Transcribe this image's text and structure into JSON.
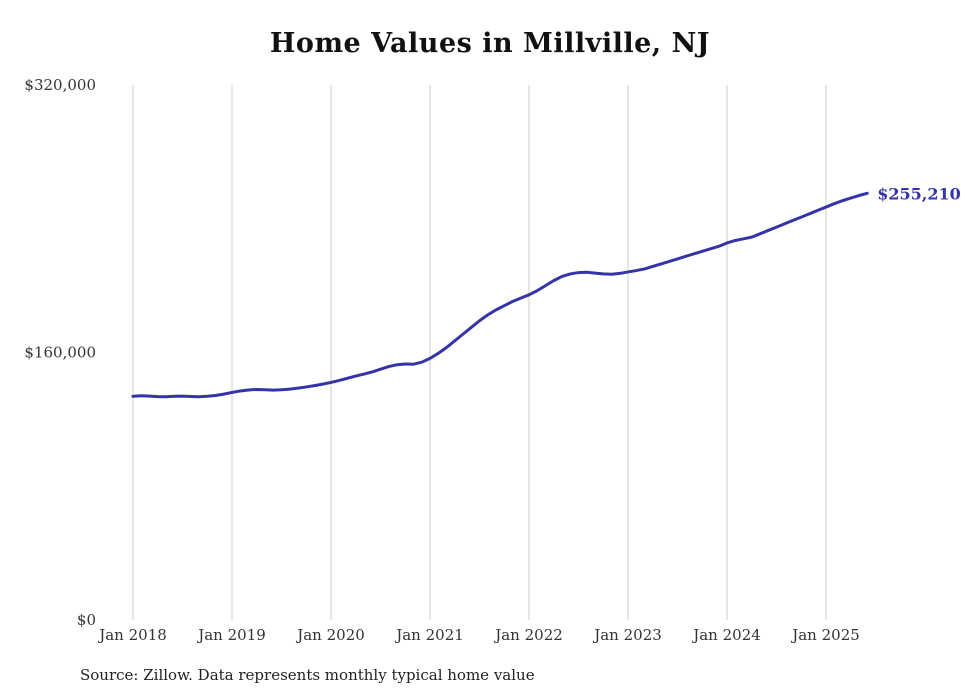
{
  "title": "Home Values in Millville, NJ",
  "source_note": "Source: Zillow. Data represents monthly typical home value",
  "end_label": "$255,210",
  "line_color": "#3533a8",
  "gridline_color": "#cccccc",
  "axis_text_color": "#333333",
  "chart_data": {
    "type": "line",
    "title": "Home Values in Millville, NJ",
    "xlabel": "",
    "ylabel": "",
    "ylim": [
      0,
      320000
    ],
    "grid": "vertical-only",
    "legend_position": "none",
    "x_tick_labels": [
      "Jan 2018",
      "Jan 2019",
      "Jan 2020",
      "Jan 2021",
      "Jan 2022",
      "Jan 2023",
      "Jan 2024",
      "Jan 2025"
    ],
    "y_ticks": [
      {
        "value": 0,
        "label": "$0"
      },
      {
        "value": 160000,
        "label": "$160,000"
      },
      {
        "value": 320000,
        "label": "$320,000"
      }
    ],
    "x": [
      "2018-01",
      "2018-02",
      "2018-03",
      "2018-04",
      "2018-05",
      "2018-06",
      "2018-07",
      "2018-08",
      "2018-09",
      "2018-10",
      "2018-11",
      "2018-12",
      "2019-01",
      "2019-02",
      "2019-03",
      "2019-04",
      "2019-05",
      "2019-06",
      "2019-07",
      "2019-08",
      "2019-09",
      "2019-10",
      "2019-11",
      "2019-12",
      "2020-01",
      "2020-02",
      "2020-03",
      "2020-04",
      "2020-05",
      "2020-06",
      "2020-07",
      "2020-08",
      "2020-09",
      "2020-10",
      "2020-11",
      "2020-12",
      "2021-01",
      "2021-02",
      "2021-03",
      "2021-04",
      "2021-05",
      "2021-06",
      "2021-07",
      "2021-08",
      "2021-09",
      "2021-10",
      "2021-11",
      "2021-12",
      "2022-01",
      "2022-02",
      "2022-03",
      "2022-04",
      "2022-05",
      "2022-06",
      "2022-07",
      "2022-08",
      "2022-09",
      "2022-10",
      "2022-11",
      "2022-12",
      "2023-01",
      "2023-02",
      "2023-03",
      "2023-04",
      "2023-05",
      "2023-06",
      "2023-07",
      "2023-08",
      "2023-09",
      "2023-10",
      "2023-11",
      "2023-12",
      "2024-01",
      "2024-02",
      "2024-03",
      "2024-04",
      "2024-05",
      "2024-06",
      "2024-07",
      "2024-08",
      "2024-09",
      "2024-10",
      "2024-11",
      "2024-12",
      "2025-01",
      "2025-02",
      "2025-03",
      "2025-04",
      "2025-05",
      "2025-06"
    ],
    "series": [
      {
        "name": "Monthly typical home value",
        "values": [
          133800,
          134100,
          133900,
          133600,
          133500,
          133800,
          133900,
          133700,
          133500,
          133800,
          134300,
          135100,
          136100,
          137000,
          137600,
          137900,
          137700,
          137500,
          137700,
          138100,
          138700,
          139400,
          140200,
          141100,
          142100,
          143300,
          144600,
          145900,
          147100,
          148400,
          150000,
          151600,
          152700,
          153100,
          153000,
          154200,
          156500,
          159500,
          163000,
          167000,
          171000,
          175000,
          179000,
          182500,
          185500,
          188000,
          190500,
          192500,
          194500,
          197000,
          200000,
          203000,
          205500,
          207000,
          207800,
          208000,
          207500,
          207000,
          206800,
          207300,
          208200,
          209000,
          210000,
          211500,
          213000,
          214500,
          216000,
          217500,
          219000,
          220500,
          222000,
          223500,
          225500,
          227000,
          228000,
          229000,
          231000,
          233000,
          235000,
          237000,
          239000,
          241000,
          243000,
          245000,
          247000,
          249000,
          250800,
          252400,
          253900,
          255210
        ]
      }
    ],
    "end_value": 255210
  }
}
